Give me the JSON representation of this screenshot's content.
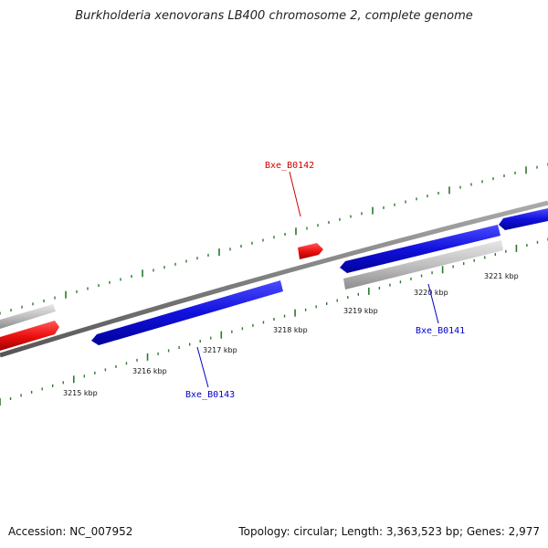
{
  "header": {
    "title": "Burkholderia xenovorans LB400 chromosome 2, complete genome"
  },
  "footer": {
    "accession": "Accession: NC_007952",
    "summary": "Topology: circular; Length: 3,363,523 bp; Genes: 2,977"
  },
  "colors": {
    "backbone": "#808080",
    "forward_gene": "#ee1111",
    "reverse_gene": "#1111dd",
    "rna_gene": "#bbbbbb",
    "tick": "#2a7a2a",
    "forward_label": "#cc0000",
    "reverse_label": "#0000cc"
  },
  "ticks": {
    "labels": [
      {
        "text": "3215 kbp"
      },
      {
        "text": "3216 kbp"
      },
      {
        "text": "3217 kbp"
      },
      {
        "text": "3218 kbp"
      },
      {
        "text": "3219 kbp"
      },
      {
        "text": "3220 kbp"
      },
      {
        "text": "3221 kbp"
      }
    ]
  },
  "genes": [
    {
      "name": "Bxe_B0142",
      "strand": "forward"
    },
    {
      "name": "Bxe_B0141",
      "strand": "reverse"
    },
    {
      "name": "Bxe_B0143",
      "strand": "reverse"
    }
  ]
}
